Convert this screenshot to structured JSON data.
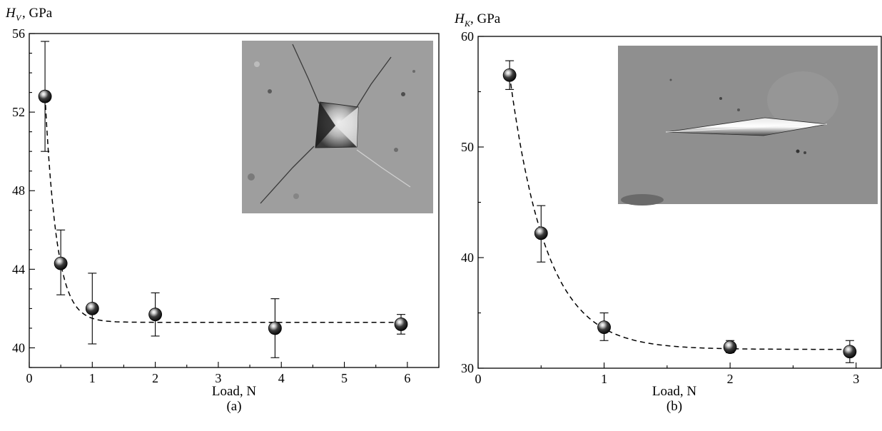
{
  "chart_data": [
    {
      "type": "scatter",
      "panel_label": "(a)",
      "ylabel": {
        "symbol": "H",
        "subscript": "V",
        "unit": ", GPa"
      },
      "xlabel": "Load, N",
      "xlim": [
        0,
        6.5
      ],
      "ylim": [
        39,
        56
      ],
      "xticks": [
        0,
        1,
        2,
        3,
        4,
        5,
        6
      ],
      "yticks": [
        40,
        44,
        48,
        52,
        56
      ],
      "series": [
        {
          "x": [
            0.25,
            0.5,
            1.0,
            2.0,
            3.9,
            5.9
          ],
          "y": [
            52.8,
            44.3,
            42.0,
            41.7,
            41.0,
            41.2
          ],
          "err_low": [
            50.0,
            42.7,
            40.2,
            40.6,
            39.5,
            40.7
          ],
          "err_high": [
            55.6,
            46.0,
            43.8,
            42.8,
            42.5,
            41.7
          ]
        }
      ],
      "fit_curve": {
        "style": "dashed",
        "asymptote": 41.3
      },
      "grid": false,
      "inset": "micrograph of Vickers indentation"
    },
    {
      "type": "scatter",
      "panel_label": "(b)",
      "ylabel": {
        "symbol": "H",
        "subscript": "K",
        "unit": ", GPa"
      },
      "xlabel": "Load, N",
      "xlim": [
        0,
        3.2
      ],
      "ylim": [
        30,
        60
      ],
      "xticks": [
        0,
        1,
        2,
        3
      ],
      "yticks": [
        30,
        40,
        50,
        60
      ],
      "series": [
        {
          "x": [
            0.25,
            0.5,
            1.0,
            2.0,
            2.95
          ],
          "y": [
            56.5,
            42.2,
            33.7,
            31.9,
            31.5
          ],
          "err_low": [
            55.2,
            39.6,
            32.5,
            31.4,
            30.5
          ],
          "err_high": [
            57.8,
            44.7,
            35.0,
            32.5,
            32.5
          ]
        }
      ],
      "fit_curve": {
        "style": "dashed",
        "asymptote": 31.7
      },
      "grid": false,
      "inset": "micrograph of Knoop indentation"
    }
  ]
}
